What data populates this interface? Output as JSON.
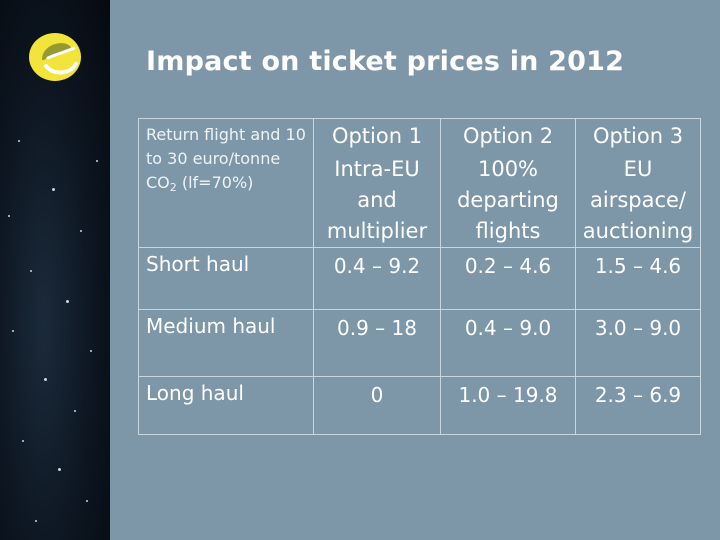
{
  "title": "Impact on ticket prices in 2012",
  "colors": {
    "background": "#7d97a8",
    "logo": "#f2e43a",
    "text": "#ffffff"
  },
  "logo_icon": "europe-e-logo",
  "table": {
    "header_label": "Return flight and 10 to 30 euro/tonne",
    "header_label_co2": "CO",
    "header_label_sub": "2",
    "header_label_tail": " (lf=70%)",
    "options": [
      {
        "name": "Option 1",
        "desc": [
          "Intra-EU",
          "and",
          "multiplier"
        ]
      },
      {
        "name": "Option 2",
        "desc": [
          "100%",
          "departing",
          "flights"
        ]
      },
      {
        "name": "Option 3",
        "desc": [
          "EU",
          "airspace/",
          "auctioning"
        ]
      }
    ],
    "rows": [
      {
        "label": "Short haul",
        "values": [
          "0.4 – 9.2",
          "0.2 – 4.6",
          "1.5 – 4.6"
        ]
      },
      {
        "label": "Medium haul",
        "values": [
          "0.9 – 18",
          "0.4 – 9.0",
          "3.0 – 9.0"
        ]
      },
      {
        "label": "Long haul",
        "values": [
          "0",
          "1.0 – 19.8",
          "2.3 – 6.9"
        ]
      }
    ]
  }
}
